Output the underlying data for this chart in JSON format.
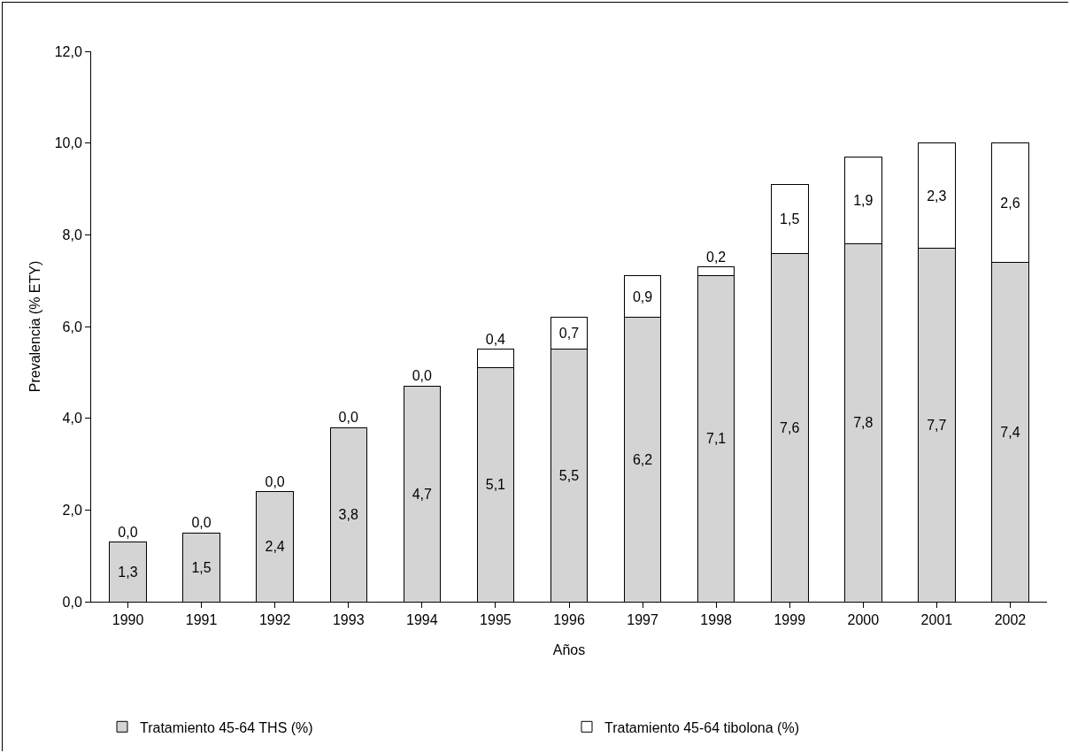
{
  "chart_data": {
    "type": "bar",
    "stacked": true,
    "xlabel": "Años",
    "ylabel": "Prevalencia (% ETY)",
    "categories": [
      "1990",
      "1991",
      "1992",
      "1993",
      "1994",
      "1995",
      "1996",
      "1997",
      "1998",
      "1999",
      "2000",
      "2001",
      "2002"
    ],
    "series": [
      {
        "name": "Tratamiento 45-64 THS (%)",
        "color": "#d4d4d4",
        "values": [
          1.3,
          1.5,
          2.4,
          3.8,
          4.7,
          5.1,
          5.5,
          6.2,
          7.1,
          7.6,
          7.8,
          7.7,
          7.4
        ],
        "value_labels": [
          "1,3",
          "1,5",
          "2,4",
          "3,8",
          "4,7",
          "5,1",
          "5,5",
          "6,2",
          "7,1",
          "7,6",
          "7,8",
          "7,7",
          "7,4"
        ]
      },
      {
        "name": "Tratamiento 45-64 tibolona (%)",
        "color": "#ffffff",
        "values": [
          0.0,
          0.0,
          0.0,
          0.0,
          0.0,
          0.4,
          0.7,
          0.9,
          0.2,
          1.5,
          1.9,
          2.3,
          2.6
        ],
        "value_labels": [
          "0,0",
          "0,0",
          "0,0",
          "0,0",
          "0,0",
          "0,4",
          "0,7",
          "0,9",
          "0,2",
          "1,5",
          "1,9",
          "2,3",
          "2,6"
        ]
      }
    ],
    "ylim": [
      0,
      12
    ],
    "yticks": [
      {
        "value": 0,
        "label": "0,0"
      },
      {
        "value": 2,
        "label": "2,0"
      },
      {
        "value": 4,
        "label": "4,0"
      },
      {
        "value": 6,
        "label": "6,0"
      },
      {
        "value": 8,
        "label": "8,0"
      },
      {
        "value": 10,
        "label": "10,0"
      },
      {
        "value": 12,
        "label": "12,0"
      }
    ],
    "grid": false,
    "legend": "bottom"
  }
}
